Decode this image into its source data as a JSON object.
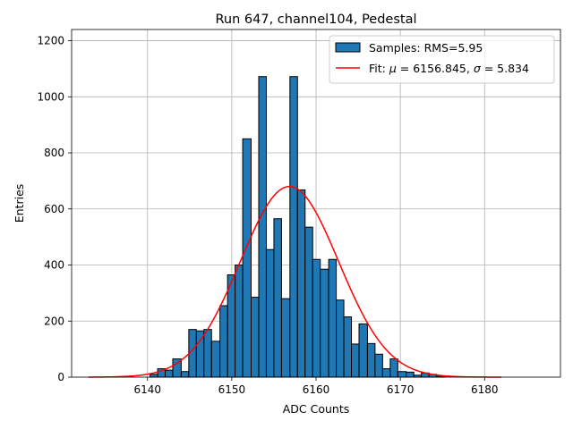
{
  "chart_data": {
    "type": "bar",
    "title": "Run 647, channel104, Pedestal",
    "xlabel": "ADC Counts",
    "ylabel": "Entries",
    "xlim": [
      6131,
      6189
    ],
    "ylim": [
      0,
      1240
    ],
    "xticks": [
      6140,
      6150,
      6160,
      6170,
      6180
    ],
    "yticks": [
      0,
      200,
      400,
      600,
      800,
      1000,
      1200
    ],
    "grid": true,
    "legend_position": "top-right",
    "histogram": {
      "name": "Samples: RMS=5.95",
      "color": "#1f77b4",
      "edgecolor": "#000000",
      "bins": [
        {
          "x0": 6140.3,
          "x1": 6141.2,
          "count": 10
        },
        {
          "x0": 6141.2,
          "x1": 6142.1,
          "count": 30
        },
        {
          "x0": 6142.1,
          "x1": 6143.0,
          "count": 25
        },
        {
          "x0": 6143.0,
          "x1": 6144.0,
          "count": 65
        },
        {
          "x0": 6144.0,
          "x1": 6144.9,
          "count": 20
        },
        {
          "x0": 6144.9,
          "x1": 6145.8,
          "count": 170
        },
        {
          "x0": 6145.8,
          "x1": 6146.7,
          "count": 165
        },
        {
          "x0": 6146.7,
          "x1": 6147.6,
          "count": 170
        },
        {
          "x0": 6147.6,
          "x1": 6148.6,
          "count": 128
        },
        {
          "x0": 6148.6,
          "x1": 6149.5,
          "count": 255
        },
        {
          "x0": 6149.5,
          "x1": 6150.4,
          "count": 365
        },
        {
          "x0": 6150.4,
          "x1": 6151.3,
          "count": 400
        },
        {
          "x0": 6151.3,
          "x1": 6152.3,
          "count": 850
        },
        {
          "x0": 6152.3,
          "x1": 6153.2,
          "count": 285
        },
        {
          "x0": 6153.2,
          "x1": 6154.1,
          "count": 1072
        },
        {
          "x0": 6154.1,
          "x1": 6155.0,
          "count": 455
        },
        {
          "x0": 6155.0,
          "x1": 6155.9,
          "count": 565
        },
        {
          "x0": 6155.9,
          "x1": 6156.9,
          "count": 280
        },
        {
          "x0": 6156.9,
          "x1": 6157.8,
          "count": 1072
        },
        {
          "x0": 6157.8,
          "x1": 6158.7,
          "count": 668
        },
        {
          "x0": 6158.7,
          "x1": 6159.6,
          "count": 535
        },
        {
          "x0": 6159.6,
          "x1": 6160.5,
          "count": 420
        },
        {
          "x0": 6160.5,
          "x1": 6161.5,
          "count": 385
        },
        {
          "x0": 6161.5,
          "x1": 6162.4,
          "count": 420
        },
        {
          "x0": 6162.4,
          "x1": 6163.3,
          "count": 275
        },
        {
          "x0": 6163.3,
          "x1": 6164.2,
          "count": 215
        },
        {
          "x0": 6164.2,
          "x1": 6165.1,
          "count": 118
        },
        {
          "x0": 6165.1,
          "x1": 6166.1,
          "count": 190
        },
        {
          "x0": 6166.1,
          "x1": 6167.0,
          "count": 120
        },
        {
          "x0": 6167.0,
          "x1": 6167.9,
          "count": 82
        },
        {
          "x0": 6167.9,
          "x1": 6168.8,
          "count": 30
        },
        {
          "x0": 6168.8,
          "x1": 6169.7,
          "count": 65
        },
        {
          "x0": 6169.7,
          "x1": 6170.7,
          "count": 20
        },
        {
          "x0": 6170.7,
          "x1": 6171.6,
          "count": 18
        },
        {
          "x0": 6171.6,
          "x1": 6172.5,
          "count": 7
        },
        {
          "x0": 6172.5,
          "x1": 6173.4,
          "count": 15
        },
        {
          "x0": 6173.4,
          "x1": 6174.3,
          "count": 10
        },
        {
          "x0": 6174.3,
          "x1": 6175.3,
          "count": 3
        }
      ]
    },
    "fit": {
      "name": "Fit: μ = 6156.845, σ = 5.834",
      "color": "#ff0000",
      "mu": 6156.845,
      "sigma": 5.834,
      "amplitude": 680,
      "x_range": [
        6133,
        6182
      ]
    },
    "legend": [
      {
        "kind": "patch",
        "label_prefix": "Samples: RMS=",
        "label_value": "5.95"
      },
      {
        "kind": "line",
        "label_prefix": "Fit: ",
        "mu_symbol": "μ",
        "mu_text": " = 6156.845, ",
        "sigma_symbol": "σ",
        "sigma_text": " = 5.834"
      }
    ]
  }
}
